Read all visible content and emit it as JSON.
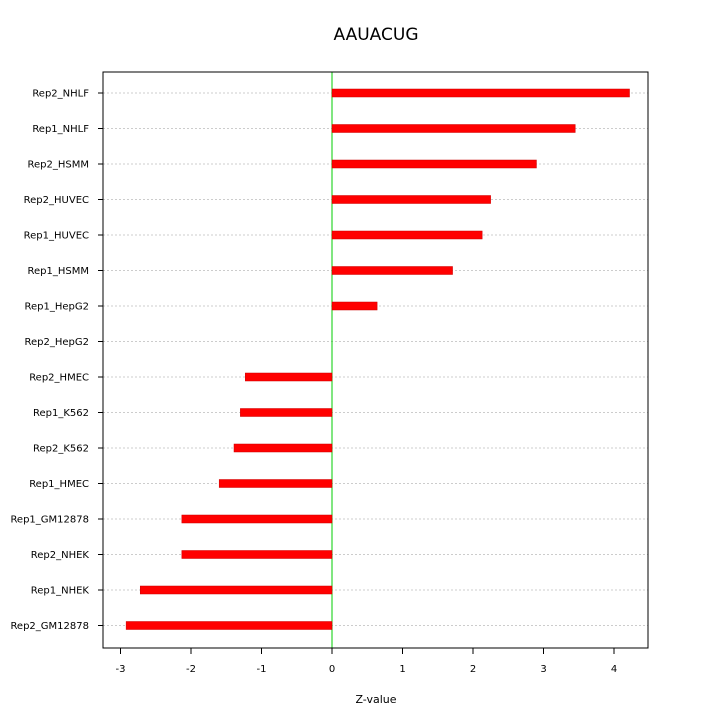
{
  "chart_data": {
    "type": "bar",
    "orientation": "horizontal",
    "title": "AAUACUG",
    "xlabel": "Z-value",
    "ylabel": "",
    "xlim": [
      -3.15,
      4.5
    ],
    "xticks": [
      -3,
      -2,
      -1,
      0,
      1,
      2,
      3,
      4
    ],
    "xtick_labels": [
      "-3",
      "-2",
      "-1",
      "0",
      "1",
      "2",
      "3",
      "4"
    ],
    "grid": "horizontal dotted",
    "bar_color": "#ff0000",
    "zero_line_color": "#00cc00",
    "categories": [
      "Rep2_NHLF",
      "Rep1_NHLF",
      "Rep2_HSMM",
      "Rep2_HUVEC",
      "Rep1_HUVEC",
      "Rep1_HSMM",
      "Rep1_HepG2",
      "Rep2_HepG2",
      "Rep2_HMEC",
      "Rep1_K562",
      "Rep2_K562",
      "Rep1_HMEC",
      "Rep1_GM12878",
      "Rep2_NHEK",
      "Rep1_NHEK",
      "Rep2_GM12878"
    ],
    "values": [
      4.22,
      3.45,
      2.9,
      2.25,
      2.13,
      1.71,
      0.64,
      0.0,
      -1.23,
      -1.3,
      -1.39,
      -1.6,
      -2.13,
      -2.13,
      -2.72,
      -2.92
    ]
  }
}
